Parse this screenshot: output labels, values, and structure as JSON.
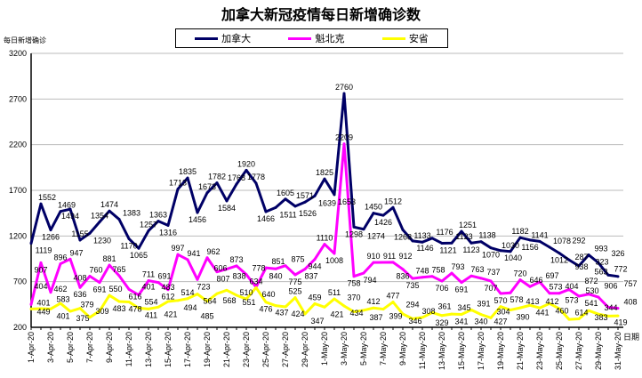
{
  "chart_data": {
    "type": "line",
    "title": "加拿大新冠疫情每日新增确诊数",
    "ylabel": "每日新增确诊",
    "xlabel": "日期",
    "ylim": [
      200,
      3200
    ],
    "yticks": [
      200,
      700,
      1200,
      1700,
      2200,
      2700,
      3200
    ],
    "grid": true,
    "legend_position": "top-center",
    "x": [
      "1-Apr-20",
      "2-Apr-20",
      "3-Apr-20",
      "4-Apr-20",
      "5-Apr-20",
      "6-Apr-20",
      "7-Apr-20",
      "8-Apr-20",
      "9-Apr-20",
      "10-Apr-20",
      "11-Apr-20",
      "12-Apr-20",
      "13-Apr-20",
      "14-Apr-20",
      "15-Apr-20",
      "16-Apr-20",
      "17-Apr-20",
      "18-Apr-20",
      "19-Apr-20",
      "20-Apr-20",
      "21-Apr-20",
      "22-Apr-20",
      "23-Apr-20",
      "24-Apr-20",
      "25-Apr-20",
      "26-Apr-20",
      "27-Apr-20",
      "28-Apr-20",
      "29-Apr-20",
      "30-Apr-20",
      "1-May-20",
      "2-May-20",
      "3-May-20",
      "4-May-20",
      "5-May-20",
      "6-May-20",
      "7-May-20",
      "8-May-20",
      "9-May-20",
      "10-May-20",
      "11-May-20",
      "12-May-20",
      "13-May-20",
      "14-May-20",
      "15-May-20",
      "16-May-20",
      "17-May-20",
      "18-May-20",
      "19-May-20",
      "20-May-20",
      "21-May-20",
      "22-May-20",
      "23-May-20",
      "24-May-20",
      "25-May-20",
      "26-May-20",
      "27-May-20",
      "28-May-20",
      "29-May-20",
      "30-May-20",
      "31-May-20"
    ],
    "series": [
      {
        "name": "加拿大",
        "color": "#000066",
        "values": [
          1119,
          1552,
          1266,
          1469,
          1494,
          1155,
          1230,
          1354,
          1474,
          1383,
          1170,
          1065,
          1257,
          1363,
          1316,
          1713,
          1835,
          1456,
          1673,
          1782,
          1584,
          1768,
          1920,
          1778,
          1466,
          1511,
          1605,
          1526,
          1571,
          1639,
          1825,
          1653,
          2760,
          1298,
          1274,
          1450,
          1426,
          1512,
          1268,
          1146,
          1133,
          1176,
          1121,
          1123,
          1251,
          1123,
          1138,
          1070,
          1040,
          1030,
          1182,
          1156,
          1141,
          1078,
          1012,
          938,
          872,
          993,
          906,
          772,
          757
        ]
      },
      {
        "name": "魁北克",
        "color": "#ff00ff",
        "values": [
          449,
          907,
          583,
          896,
          947,
          636,
          760,
          691,
          881,
          765,
          616,
          554,
          711,
          691,
          612,
          997,
          941,
          723,
          962,
          807,
          838,
          873,
          778,
          640,
          851,
          840,
          875,
          775,
          837,
          944,
          1110,
          1008,
          2209,
          758,
          794,
          910,
          911,
          912,
          836,
          735,
          748,
          758,
          706,
          793,
          691,
          763,
          737,
          707,
          570,
          578,
          720,
          646,
          697,
          573,
          573,
          614,
          541,
          563,
          530,
          419,
          408
        ]
      },
      {
        "name": "安省",
        "color": "#ffff00",
        "values": [
          401,
          404,
          401,
          462,
          375,
          408,
          309,
          379,
          550,
          483,
          478,
          411,
          401,
          421,
          483,
          494,
          514,
          564,
          485,
          568,
          606,
          551,
          510,
          634,
          476,
          437,
          424,
          525,
          347,
          459,
          421,
          511,
          434,
          370,
          387,
          412,
          399,
          477,
          346,
          294,
          308,
          361,
          329,
          345,
          341,
          391,
          340,
          304,
          427,
          390,
          413,
          441,
          412,
          460,
          404,
          287,
          292,
          383,
          344,
          323,
          326
        ]
      }
    ]
  }
}
